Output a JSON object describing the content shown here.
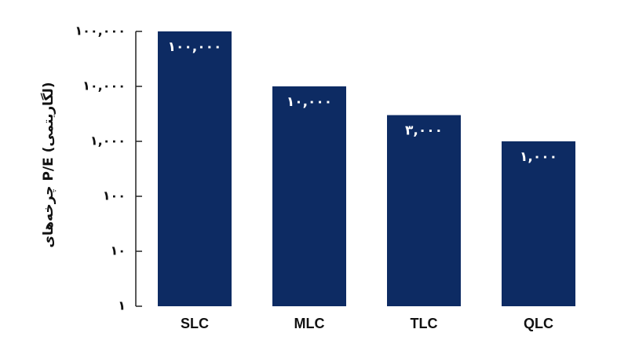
{
  "chart_data": {
    "type": "bar",
    "y_label": "چرخه‌های P/E (لگاریتمی)",
    "categories": [
      "SLC",
      "MLC",
      "TLC",
      "QLC"
    ],
    "values": [
      100000,
      10000,
      3000,
      1000
    ],
    "value_labels": [
      "۱۰۰,۰۰۰",
      "۱۰,۰۰۰",
      "۳,۰۰۰",
      "۱,۰۰۰"
    ],
    "color": "#0d2b63",
    "log_scale": true,
    "ylim": [
      1,
      100000
    ],
    "yticks": [
      {
        "value": 1,
        "label": "۱"
      },
      {
        "value": 10,
        "label": "۱۰"
      },
      {
        "value": 100,
        "label": "۱۰۰"
      },
      {
        "value": 1000,
        "label": "۱,۰۰۰"
      },
      {
        "value": 10000,
        "label": "۱۰,۰۰۰"
      },
      {
        "value": 100000,
        "label": "۱۰۰,۰۰۰"
      }
    ],
    "grid": false
  }
}
